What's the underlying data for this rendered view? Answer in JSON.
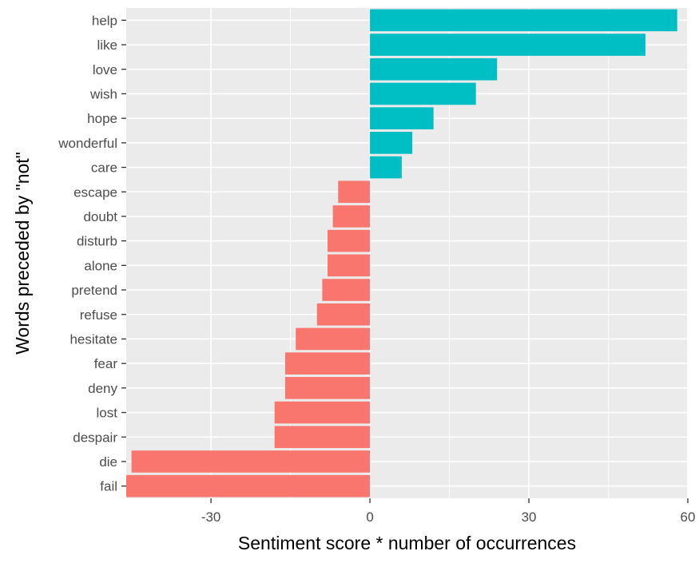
{
  "chart_data": {
    "type": "bar",
    "orientation": "horizontal",
    "title": "",
    "xlabel": "Sentiment score * number of occurrences",
    "ylabel": "Words preceded by \"not\"",
    "xlim": [
      -46,
      60
    ],
    "x_ticks": [
      -30,
      0,
      30,
      60
    ],
    "x_tick_labels": [
      "-30",
      "0",
      "30",
      "60"
    ],
    "grid": true,
    "legend": "none",
    "categories": [
      "help",
      "like",
      "love",
      "wish",
      "hope",
      "wonderful",
      "care",
      "escape",
      "doubt",
      "disturb",
      "alone",
      "pretend",
      "refuse",
      "hesitate",
      "fear",
      "deny",
      "lost",
      "despair",
      "die",
      "fail"
    ],
    "values": [
      58,
      52,
      24,
      20,
      12,
      8,
      6,
      -6,
      -7,
      -8,
      -8,
      -9,
      -10,
      -14,
      -16,
      -16,
      -18,
      -18,
      -45,
      -46
    ],
    "colors": {
      "positive": "#00BFC4",
      "negative": "#F8766D",
      "panel": "#EBEBEB",
      "grid_major": "#FFFFFF",
      "tick_label": "#4D4D4D",
      "axis_title": "#000000"
    }
  }
}
